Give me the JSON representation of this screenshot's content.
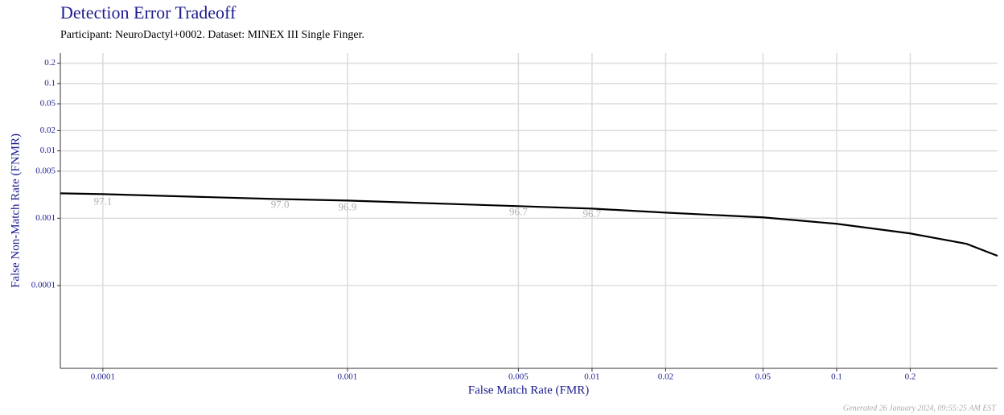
{
  "chart_data": {
    "type": "line",
    "title": "Detection Error Tradeoff",
    "subtitle": "Participant: NeuroDactyl+0002. Dataset: MINEX III Single Finger.",
    "x_label": "False Match Rate (FMR)",
    "y_label": "False Non-Match Rate (FNMR)",
    "footer": "Generated 26 January 2024, 09:55:25 AM EST",
    "x_scale": "log",
    "y_scale": "log",
    "grid": true,
    "xlim": [
      6.7e-05,
      0.455
    ],
    "ylim": [
      5.9e-06,
      0.283
    ],
    "xticks": [
      0.0001,
      0.001,
      0.005,
      0.01,
      0.02,
      0.05,
      0.1,
      0.2
    ],
    "yticks": [
      0.0001,
      0.001,
      0.005,
      0.01,
      0.02,
      0.05,
      0.1,
      0.2
    ],
    "series": [
      {
        "color": "#000000",
        "x": [
          6.7e-05,
          0.0001,
          0.0005,
          0.001,
          0.005,
          0.01,
          0.02,
          0.05,
          0.1,
          0.2,
          0.34,
          0.455
        ],
        "y": [
          0.00234,
          0.00228,
          0.00193,
          0.00183,
          0.00151,
          0.00139,
          0.00121,
          0.00103,
          0.000826,
          0.000594,
          0.000416,
          0.000276
        ]
      }
    ],
    "annotations": [
      {
        "text": "97.1",
        "x": 0.0001,
        "y": 0.00173
      },
      {
        "text": "97.0",
        "x": 0.00053,
        "y": 0.00155
      },
      {
        "text": "96.9",
        "x": 0.001,
        "y": 0.00143
      },
      {
        "text": "96.7",
        "x": 0.005,
        "y": 0.00121
      },
      {
        "text": "96.7",
        "x": 0.01,
        "y": 0.00112
      }
    ]
  }
}
